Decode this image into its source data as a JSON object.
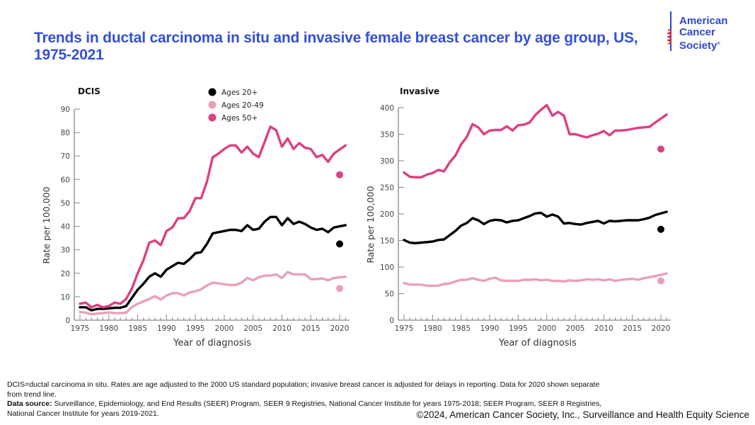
{
  "title": "Trends in ductal carcinoma in situ and invasive female breast cancer by age group, US, 1975-2021",
  "logo": {
    "line1": "American",
    "line2": "Cancer",
    "line3": "Society",
    "mark": "®"
  },
  "colors": {
    "title_blue": "#3550d6",
    "ages20plus": "#000000",
    "ages20_49": "#e8a0ba",
    "ages50plus": "#dc3f82"
  },
  "legend": [
    {
      "label": "Ages 20+",
      "key": "ages20plus"
    },
    {
      "label": "Ages 20-49",
      "key": "ages20_49"
    },
    {
      "label": "Ages 50+",
      "key": "ages50plus"
    }
  ],
  "chart_data": [
    {
      "type": "line",
      "title": "DCIS",
      "xlabel": "Year of diagnosis",
      "ylabel": "Rate per 100,000",
      "ylim": [
        0,
        90
      ],
      "yticks": [
        0,
        10,
        20,
        30,
        40,
        50,
        60,
        70,
        80,
        90
      ],
      "xlim": [
        1975,
        2021
      ],
      "xticks": [
        1975,
        1980,
        1985,
        1990,
        1995,
        2000,
        2005,
        2010,
        2015,
        2020
      ],
      "legend_position": "top-center",
      "x": [
        1975,
        1976,
        1977,
        1978,
        1979,
        1980,
        1981,
        1982,
        1983,
        1984,
        1985,
        1986,
        1987,
        1988,
        1989,
        1990,
        1991,
        1992,
        1993,
        1994,
        1995,
        1996,
        1997,
        1998,
        1999,
        2000,
        2001,
        2002,
        2003,
        2004,
        2005,
        2006,
        2007,
        2008,
        2009,
        2010,
        2011,
        2012,
        2013,
        2014,
        2015,
        2016,
        2017,
        2018,
        2019,
        2021
      ],
      "series": [
        {
          "name": "Ages 20+",
          "key": "ages20plus",
          "values": [
            5.5,
            5.5,
            4.2,
            4.8,
            4.8,
            5.0,
            5.3,
            5.3,
            6.0,
            9.5,
            13.0,
            15.5,
            18.5,
            20.0,
            18.5,
            21.5,
            23.0,
            24.5,
            24.0,
            26.0,
            28.5,
            29.0,
            32.5,
            37.0,
            37.5,
            38.0,
            38.5,
            38.5,
            38.0,
            40.5,
            38.5,
            39.0,
            42.0,
            44.0,
            44.0,
            40.5,
            43.5,
            41.0,
            42.0,
            41.0,
            39.5,
            38.5,
            39.0,
            37.5,
            39.5,
            40.5
          ]
        },
        {
          "name": "Ages 20-49",
          "key": "ages20_49",
          "values": [
            3.5,
            3.2,
            2.5,
            2.8,
            3.0,
            3.3,
            3.0,
            3.0,
            3.2,
            5.5,
            7.0,
            8.0,
            9.0,
            10.2,
            8.8,
            10.5,
            11.5,
            11.5,
            10.5,
            11.8,
            12.3,
            13.2,
            14.8,
            16.0,
            15.7,
            15.3,
            15.0,
            15.0,
            16.0,
            18.0,
            17.0,
            18.3,
            19.0,
            19.0,
            19.5,
            18.0,
            20.5,
            19.5,
            19.5,
            19.5,
            17.5,
            17.5,
            17.8,
            17.0,
            18.0,
            18.5
          ]
        },
        {
          "name": "Ages 50+",
          "key": "ages50plus",
          "values": [
            7.0,
            7.5,
            5.5,
            6.5,
            5.5,
            6.0,
            7.5,
            7.0,
            9.0,
            13.5,
            20.0,
            25.5,
            33.0,
            34.0,
            32.0,
            38.0,
            39.5,
            43.5,
            43.5,
            46.5,
            52.0,
            52.0,
            59.0,
            69.5,
            71.0,
            73.0,
            74.5,
            74.5,
            71.5,
            74.0,
            71.0,
            69.5,
            76.0,
            82.5,
            81.0,
            74.0,
            77.5,
            73.0,
            75.5,
            73.5,
            73.0,
            69.5,
            70.5,
            67.5,
            71.0,
            74.5
          ]
        }
      ],
      "points_2020": [
        {
          "name": "Ages 20+",
          "key": "ages20plus",
          "x": 2020,
          "y": 32.5
        },
        {
          "name": "Ages 20-49",
          "key": "ages20_49",
          "x": 2020,
          "y": 13.5
        },
        {
          "name": "Ages 50+",
          "key": "ages50plus",
          "x": 2020,
          "y": 62.0
        }
      ]
    },
    {
      "type": "line",
      "title": "Invasive",
      "xlabel": "Year of diagnosis",
      "ylabel": "Rate per 100,000",
      "ylim": [
        0,
        400
      ],
      "yticks": [
        0,
        50,
        100,
        150,
        200,
        250,
        300,
        350,
        400
      ],
      "xlim": [
        1975,
        2021
      ],
      "xticks": [
        1975,
        1980,
        1985,
        1990,
        1995,
        2000,
        2005,
        2010,
        2015,
        2020
      ],
      "x": [
        1975,
        1976,
        1977,
        1978,
        1979,
        1980,
        1981,
        1982,
        1983,
        1984,
        1985,
        1986,
        1987,
        1988,
        1989,
        1990,
        1991,
        1992,
        1993,
        1994,
        1995,
        1996,
        1997,
        1998,
        1999,
        2000,
        2001,
        2002,
        2003,
        2004,
        2005,
        2006,
        2007,
        2008,
        2009,
        2010,
        2011,
        2012,
        2013,
        2014,
        2015,
        2016,
        2017,
        2018,
        2019,
        2021
      ],
      "series": [
        {
          "name": "Ages 20+",
          "key": "ages20plus",
          "values": [
            151,
            146,
            145,
            146,
            147,
            148,
            151,
            152,
            160,
            168,
            178,
            183,
            192,
            188,
            181,
            187,
            189,
            188,
            184,
            187,
            188,
            192,
            196,
            201,
            202,
            195,
            199,
            195,
            182,
            183,
            181,
            180,
            183,
            185,
            187,
            182,
            187,
            186,
            187,
            188,
            188,
            188,
            190,
            193,
            198,
            204
          ]
        },
        {
          "name": "Ages 20-49",
          "key": "ages20_49",
          "values": [
            70,
            67,
            67,
            67,
            65,
            65,
            65,
            68,
            69,
            73,
            76,
            76,
            79,
            76,
            74,
            78,
            80,
            75,
            74,
            74,
            74,
            76,
            76,
            77,
            75,
            76,
            74,
            74,
            73,
            75,
            74,
            75,
            77,
            76,
            77,
            75,
            77,
            74,
            76,
            77,
            78,
            76,
            79,
            81,
            83,
            88
          ]
        },
        {
          "name": "Ages 50+",
          "key": "ages50plus",
          "values": [
            278,
            270,
            269,
            269,
            274,
            277,
            283,
            280,
            297,
            310,
            331,
            345,
            369,
            363,
            350,
            357,
            358,
            358,
            365,
            357,
            367,
            368,
            372,
            386,
            396,
            405,
            385,
            392,
            385,
            350,
            350,
            347,
            344,
            348,
            351,
            356,
            348,
            357,
            357,
            358,
            360,
            362,
            363,
            364,
            372,
            387
          ]
        }
      ],
      "points_2020": [
        {
          "name": "Ages 20+",
          "key": "ages20plus",
          "x": 2020,
          "y": 171
        },
        {
          "name": "Ages 20-49",
          "key": "ages20_49",
          "x": 2020,
          "y": 74
        },
        {
          "name": "Ages 50+",
          "key": "ages50plus",
          "x": 2020,
          "y": 322
        }
      ]
    }
  ],
  "footer": {
    "note": "DCIS=ductal carcinoma in situ. Rates are age adjusted to the 2000 US standard population; invasive breast cancer is adjusted for delays in reporting. Data for 2020 shown separate from trend line.",
    "source_label": "Data source:",
    "source_text": " Surveillance, Epidemiology, and End Results (SEER) Program, SEER 9 Registries, National Cancer Institute for years 1975-2018;  SEER Program, SEER 8 Registries, National Cancer Institute for years 2019-2021.",
    "copyright": "©2024, American Cancer Society, Inc., Surveillance and Health Equity Science"
  }
}
